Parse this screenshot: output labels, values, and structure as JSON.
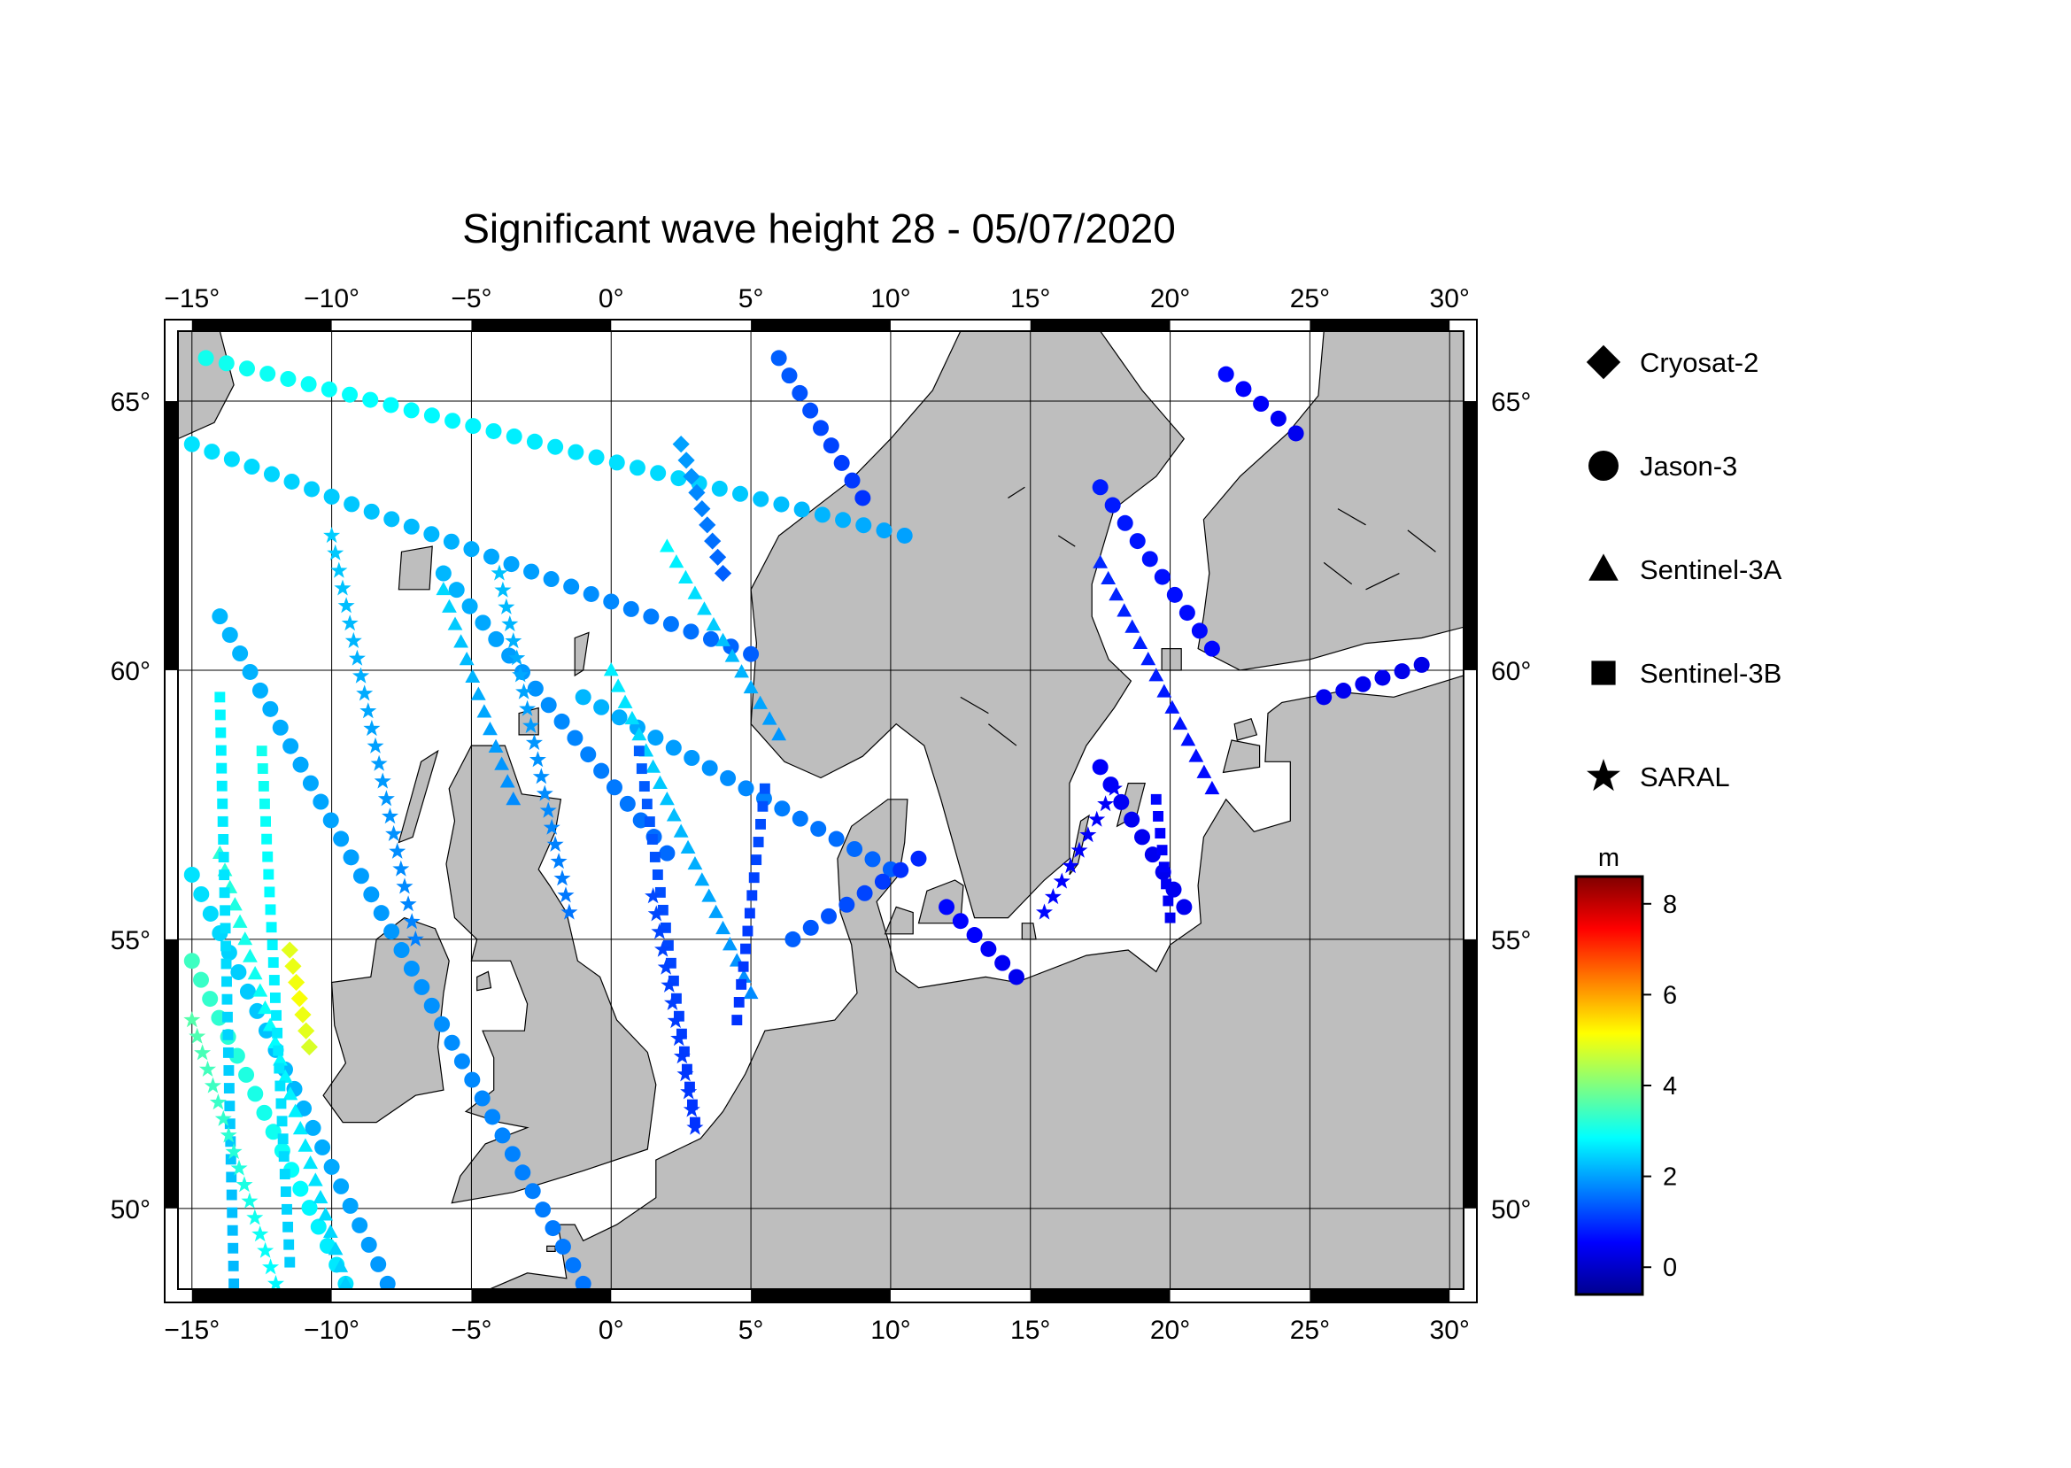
{
  "title": "Significant wave height 28 - 05/07/2020",
  "map": {
    "lon_range": [
      -15.5,
      30.5
    ],
    "lat_range": [
      48.5,
      66.3
    ],
    "lon_ticks": [
      -15,
      -10,
      -5,
      0,
      5,
      10,
      15,
      20,
      25,
      30
    ],
    "lat_ticks": [
      50,
      55,
      60,
      65
    ],
    "lon_tick_labels": [
      "-15°",
      "-10°",
      "-5°",
      "0°",
      "5°",
      "10°",
      "15°",
      "20°",
      "25°",
      "30°"
    ],
    "lat_tick_labels": [
      "50°",
      "55°",
      "60°",
      "65°"
    ],
    "gridlines": true,
    "land_color": "#bebebe",
    "sea_color": "#ffffff"
  },
  "legend": {
    "position": "right",
    "items": [
      {
        "satellite": "Cryosat-2",
        "symbol": "diamond"
      },
      {
        "satellite": "Jason-3",
        "symbol": "circle"
      },
      {
        "satellite": "Sentinel-3A",
        "symbol": "triangle"
      },
      {
        "satellite": "Sentinel-3B",
        "symbol": "square"
      },
      {
        "satellite": "SARAL",
        "symbol": "star"
      }
    ]
  },
  "colorbar": {
    "unit": "m",
    "min": -0.6,
    "max": 8.6,
    "ticks": [
      0,
      2,
      4,
      6,
      8
    ],
    "tick_labels": [
      "0",
      "2",
      "4",
      "6",
      "8"
    ],
    "colormap": [
      "#00008f",
      "#0000ff",
      "#0080ff",
      "#00ffff",
      "#80ff80",
      "#ffff00",
      "#ff8000",
      "#ff0000",
      "#800000"
    ]
  },
  "chart_data": {
    "type": "scatter",
    "title": "Significant wave height 28 - 05/07/2020",
    "xlabel": "",
    "ylabel": "",
    "xlim": [
      -15.5,
      30.5
    ],
    "ylim": [
      48.5,
      66.3
    ],
    "series": [
      {
        "name": "Jason-3",
        "symbol": "circle",
        "tracks": [
          {
            "from": [
              -15.0,
              64.2
            ],
            "to": [
              5.0,
              60.3
            ],
            "swh": [
              2.6,
              2.3,
              1.9,
              1.4
            ]
          },
          {
            "from": [
              -14.5,
              65.8
            ],
            "to": [
              10.5,
              62.5
            ],
            "swh": [
              3.0,
              2.8,
              2.5,
              2.0
            ]
          },
          {
            "from": [
              -15.0,
              56.2
            ],
            "to": [
              -8.0,
              48.6
            ],
            "swh": [
              2.6,
              2.2,
              1.9
            ]
          },
          {
            "from": [
              -15.0,
              54.6
            ],
            "to": [
              -9.5,
              48.6
            ],
            "swh": [
              3.4,
              3.0,
              2.6
            ]
          },
          {
            "from": [
              -14.0,
              61.0
            ],
            "to": [
              -1.0,
              48.6
            ],
            "swh": [
              2.2,
              1.9,
              1.6
            ]
          },
          {
            "from": [
              -6.0,
              61.8
            ],
            "to": [
              2.0,
              56.6
            ],
            "swh": [
              2.2,
              1.8,
              1.5
            ]
          },
          {
            "from": [
              -1.0,
              59.5
            ],
            "to": [
              10.0,
              56.3
            ],
            "swh": [
              2.2,
              1.8,
              1.4
            ]
          },
          {
            "from": [
              6.0,
              65.8
            ],
            "to": [
              9.0,
              63.2
            ],
            "swh": [
              1.4,
              1.2,
              1.0
            ]
          },
          {
            "from": [
              6.5,
              55.0
            ],
            "to": [
              11.0,
              56.5
            ],
            "swh": [
              1.4,
              1.2,
              0.9
            ]
          },
          {
            "from": [
              12.0,
              55.6
            ],
            "to": [
              14.5,
              54.3
            ],
            "swh": [
              0.6,
              0.5,
              0.4
            ]
          },
          {
            "from": [
              22.0,
              65.5
            ],
            "to": [
              24.5,
              64.4
            ],
            "swh": [
              0.6,
              0.5,
              0.4
            ]
          },
          {
            "from": [
              17.5,
              63.4
            ],
            "to": [
              21.5,
              60.4
            ],
            "swh": [
              0.8,
              0.7,
              0.6
            ]
          },
          {
            "from": [
              17.5,
              58.2
            ],
            "to": [
              20.5,
              55.6
            ],
            "swh": [
              0.5,
              0.4,
              0.4
            ]
          },
          {
            "from": [
              25.5,
              59.5
            ],
            "to": [
              29.0,
              60.1
            ],
            "swh": [
              0.4,
              0.4,
              0.3
            ]
          }
        ]
      },
      {
        "name": "Sentinel-3A",
        "symbol": "triangle",
        "tracks": [
          {
            "from": [
              -14.0,
              56.6
            ],
            "to": [
              -9.5,
              48.6
            ],
            "swh": [
              3.2,
              2.8,
              2.4
            ]
          },
          {
            "from": [
              -6.0,
              61.5
            ],
            "to": [
              -3.5,
              57.6
            ],
            "swh": [
              2.5,
              2.1,
              1.8
            ]
          },
          {
            "from": [
              0.0,
              60.0
            ],
            "to": [
              5.0,
              54.0
            ],
            "swh": [
              2.7,
              2.2,
              1.8
            ]
          },
          {
            "from": [
              2.0,
              62.3
            ],
            "to": [
              6.0,
              58.8
            ],
            "swh": [
              2.8,
              2.3,
              1.9
            ]
          },
          {
            "from": [
              17.5,
              62.0
            ],
            "to": [
              21.5,
              57.8
            ],
            "swh": [
              0.9,
              0.8,
              0.6
            ]
          }
        ]
      },
      {
        "name": "Sentinel-3B",
        "symbol": "square",
        "tracks": [
          {
            "from": [
              -14.0,
              59.5
            ],
            "to": [
              -13.5,
              48.6
            ],
            "swh": [
              2.8,
              2.5,
              2.2
            ]
          },
          {
            "from": [
              -12.5,
              58.5
            ],
            "to": [
              -11.5,
              49.0
            ],
            "swh": [
              3.0,
              2.7,
              2.4
            ]
          },
          {
            "from": [
              1.0,
              58.5
            ],
            "to": [
              3.0,
              51.6
            ],
            "swh": [
              1.4,
              1.2,
              1.0
            ]
          },
          {
            "from": [
              5.5,
              57.8
            ],
            "to": [
              4.5,
              53.5
            ],
            "swh": [
              1.3,
              1.1,
              1.0
            ]
          },
          {
            "from": [
              19.5,
              57.6
            ],
            "to": [
              20.0,
              55.4
            ],
            "swh": [
              0.6,
              0.5,
              0.4
            ]
          }
        ]
      },
      {
        "name": "SARAL",
        "symbol": "star",
        "tracks": [
          {
            "from": [
              -15.0,
              53.5
            ],
            "to": [
              -12.0,
              48.6
            ],
            "swh": [
              3.6,
              3.2,
              2.8
            ]
          },
          {
            "from": [
              -10.0,
              62.5
            ],
            "to": [
              -7.0,
              55.0
            ],
            "swh": [
              2.4,
              2.0,
              1.7
            ]
          },
          {
            "from": [
              -4.0,
              61.8
            ],
            "to": [
              -1.5,
              55.5
            ],
            "swh": [
              2.3,
              1.9,
              1.6
            ]
          },
          {
            "from": [
              1.5,
              55.8
            ],
            "to": [
              3.0,
              51.5
            ],
            "swh": [
              1.2,
              1.1,
              1.0
            ]
          },
          {
            "from": [
              15.5,
              55.5
            ],
            "to": [
              18.0,
              57.8
            ],
            "swh": [
              0.6,
              0.5,
              0.5
            ]
          }
        ]
      },
      {
        "name": "Cryosat-2",
        "symbol": "diamond",
        "tracks": [
          {
            "from": [
              2.5,
              64.2
            ],
            "to": [
              4.0,
              61.8
            ],
            "swh": [
              2.0,
              1.7,
              1.4
            ]
          },
          {
            "from": [
              -11.5,
              54.8
            ],
            "to": [
              -10.8,
              53.0
            ],
            "swh": [
              4.9,
              5.1,
              4.8
            ]
          }
        ]
      }
    ]
  }
}
